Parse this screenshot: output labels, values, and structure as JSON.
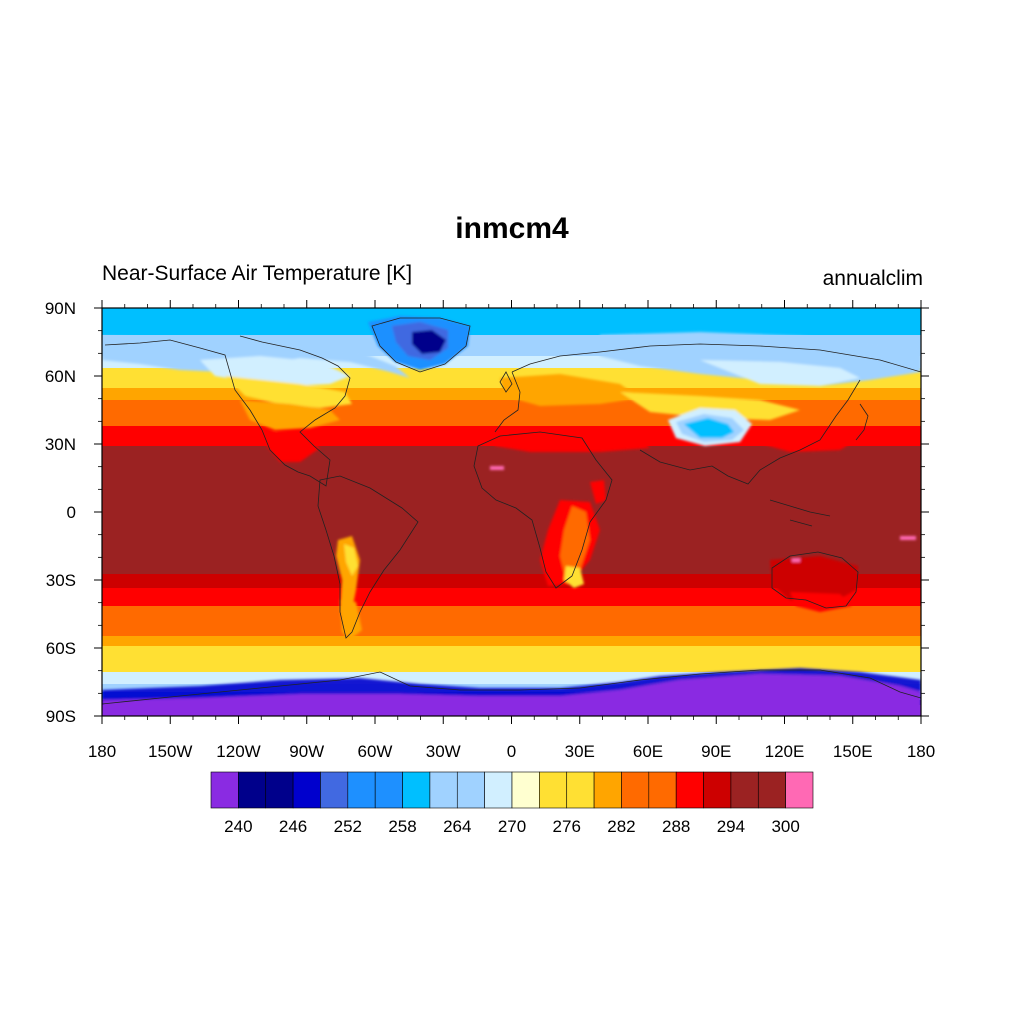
{
  "title": "inmcm4",
  "subtitle_left": "Near-Surface Air Temperature [K]",
  "subtitle_right": "annualclim",
  "axes": {
    "x_ticks": [
      {
        "lon": -180,
        "label": "180"
      },
      {
        "lon": -150,
        "label": "150W"
      },
      {
        "lon": -120,
        "label": "120W"
      },
      {
        "lon": -90,
        "label": "90W"
      },
      {
        "lon": -60,
        "label": "60W"
      },
      {
        "lon": -30,
        "label": "30W"
      },
      {
        "lon": 0,
        "label": "0"
      },
      {
        "lon": 30,
        "label": "30E"
      },
      {
        "lon": 60,
        "label": "60E"
      },
      {
        "lon": 90,
        "label": "90E"
      },
      {
        "lon": 120,
        "label": "120E"
      },
      {
        "lon": 150,
        "label": "150E"
      },
      {
        "lon": 180,
        "label": "180"
      }
    ],
    "y_ticks": [
      {
        "lat": 90,
        "label": "90N"
      },
      {
        "lat": 60,
        "label": "60N"
      },
      {
        "lat": 30,
        "label": "30N"
      },
      {
        "lat": 0,
        "label": "0"
      },
      {
        "lat": -30,
        "label": "30S"
      },
      {
        "lat": -60,
        "label": "60S"
      },
      {
        "lat": -90,
        "label": "90S"
      }
    ],
    "lon_range": [
      -180,
      180
    ],
    "lat_range": [
      -90,
      90
    ]
  },
  "colorbar": {
    "colors": [
      "#8a2be2",
      "#00008b",
      "#00008b",
      "#0000cd",
      "#4169e1",
      "#1e90ff",
      "#1e90ff",
      "#00bfff",
      "#a0d2ff",
      "#a0d2ff",
      "#d1efff",
      "#ffffd0",
      "#ffe033",
      "#ffe033",
      "#ffa500",
      "#ff6a00",
      "#ff6a00",
      "#ff0000",
      "#cd0000",
      "#9b2222",
      "#9b2222",
      "#ff69b4"
    ],
    "labels": [
      {
        "boundary": 2,
        "text": "240"
      },
      {
        "boundary": 4,
        "text": "246"
      },
      {
        "boundary": 6,
        "text": "252"
      },
      {
        "boundary": 8,
        "text": "258"
      },
      {
        "boundary": 10,
        "text": "264"
      },
      {
        "boundary": 12,
        "text": "270"
      },
      {
        "boundary": 14,
        "text": "276"
      },
      {
        "boundary": 16,
        "text": "282"
      },
      {
        "boundary": 18,
        "text": "288"
      },
      {
        "boundary": 20,
        "text": "294"
      },
      {
        "boundary": 22,
        "text": "300"
      }
    ]
  },
  "colors": {
    "violet": "#8a2be2",
    "navy": "#00008b",
    "blue": "#0000cd",
    "royal": "#4169e1",
    "dodger": "#1e90ff",
    "sky": "#00bfff",
    "lightblue": "#a0d2ff",
    "paleblue": "#d1efff",
    "cream": "#ffffd0",
    "yellow": "#ffe033",
    "amber": "#ffa500",
    "orange": "#ff6a00",
    "red": "#ff0000",
    "darkred": "#cd0000",
    "brown": "#9b2222",
    "pink": "#ff69b4"
  }
}
